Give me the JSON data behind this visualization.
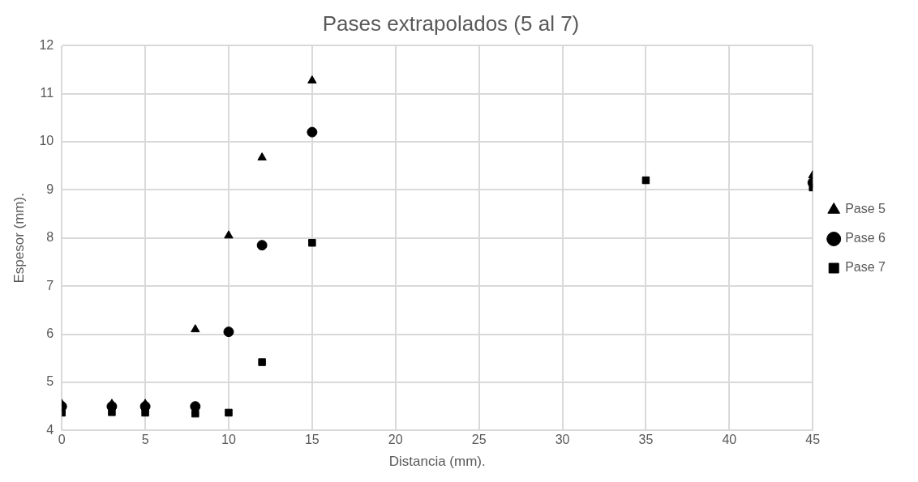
{
  "chart_data": {
    "type": "scatter",
    "title": "Pases extrapolados (5 al 7)",
    "xlabel": "Distancia (mm).",
    "ylabel": "Espesor (mm).",
    "xlim": [
      0,
      45
    ],
    "xticks": [
      0,
      5,
      10,
      15,
      20,
      25,
      30,
      35,
      40,
      45
    ],
    "ylim": [
      4,
      12
    ],
    "yticks": [
      4,
      5,
      6,
      7,
      8,
      9,
      10,
      11,
      12
    ],
    "grid": true,
    "legend": "right",
    "series": [
      {
        "name": "Pase 5",
        "color": "#000000",
        "marker": "triangle",
        "x": [
          0,
          3,
          5,
          8,
          10,
          12,
          15,
          45
        ],
        "values": [
          4.55,
          4.55,
          4.55,
          6.1,
          8.05,
          9.67,
          11.27,
          9.3
        ]
      },
      {
        "name": "Pase 6",
        "color": "#000000",
        "marker": "circle",
        "x": [
          0,
          3,
          5,
          8,
          10,
          12,
          15,
          45
        ],
        "values": [
          4.5,
          4.5,
          4.5,
          4.5,
          6.05,
          7.85,
          10.2,
          9.15
        ]
      },
      {
        "name": "Pase 7",
        "color": "#000000",
        "marker": "square",
        "x": [
          0,
          3,
          5,
          8,
          10,
          12,
          15,
          35,
          45
        ],
        "values": [
          4.37,
          4.38,
          4.37,
          4.35,
          4.37,
          5.42,
          7.9,
          9.2,
          9.05
        ]
      }
    ]
  }
}
